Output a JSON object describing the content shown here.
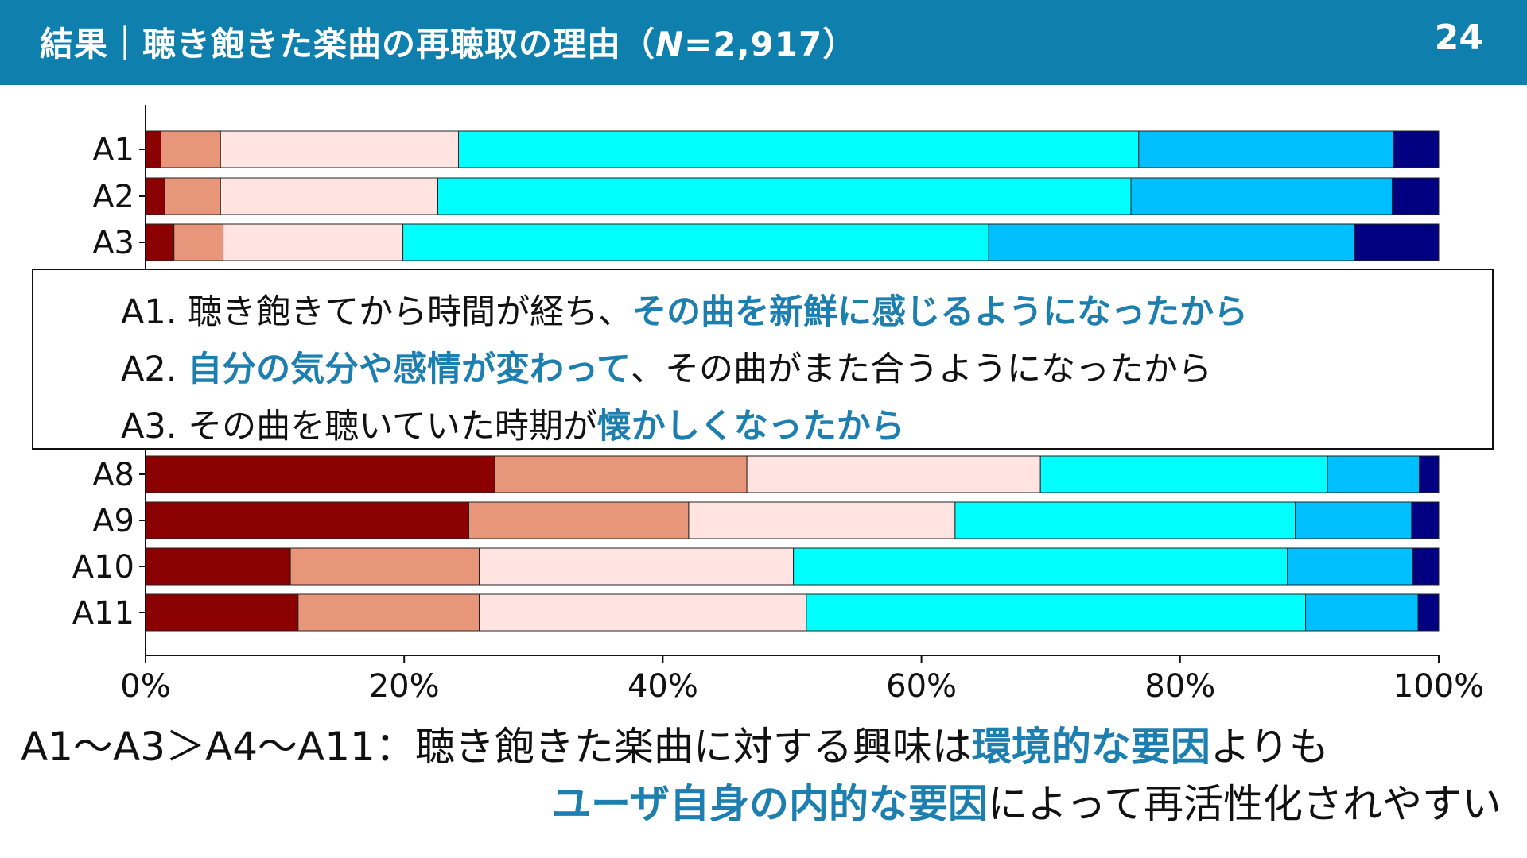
{
  "header": {
    "title_prefix": "結果｜聴き飽きた楽曲の再聴取の理由（",
    "title_n_label": "N",
    "title_suffix": "=2,917）",
    "page_number": "24"
  },
  "legend_box": {
    "rows": [
      {
        "prefix": "A1. 聴き飽きてから時間が経ち、",
        "highlight": "その曲を新鮮に感じるようになったから",
        "suffix": ""
      },
      {
        "prefix": "A2. ",
        "highlight": "自分の気分や感情が変わって",
        "suffix": "、その曲がまた合うようになったから"
      },
      {
        "prefix": "A3. その曲を聴いていた時期が",
        "highlight": "懐かしくなったから",
        "suffix": ""
      }
    ]
  },
  "conclusion": {
    "line1_prefix": "A1～A3＞A4～A11：聴き飽きた楽曲に対する興味は",
    "line1_highlight": "環境的な要因",
    "line1_suffix": "よりも",
    "line2_highlight": "ユーザ自身の内的な要因",
    "line2_suffix": "によって再活性化されやすい"
  },
  "chart_data": {
    "type": "bar",
    "orientation": "horizontal",
    "stacked": true,
    "normalized": true,
    "categories": [
      "A1",
      "A2",
      "A3",
      "A8",
      "A9",
      "A10",
      "A11"
    ],
    "series": [
      {
        "values": [
          1.2,
          1.5,
          2.2,
          27.0,
          25.0,
          11.2,
          11.8
        ],
        "color": "#8b0000"
      },
      {
        "values": [
          4.6,
          4.3,
          3.8,
          19.5,
          17.0,
          14.6,
          14.0
        ],
        "color": "#e8967a"
      },
      {
        "values": [
          18.4,
          16.8,
          13.9,
          22.7,
          20.6,
          24.3,
          25.3
        ],
        "color": "#ffe4e1"
      },
      {
        "values": [
          52.6,
          53.6,
          45.3,
          22.2,
          26.3,
          38.2,
          38.6
        ],
        "color": "#00ffff"
      },
      {
        "values": [
          19.7,
          20.2,
          28.3,
          7.1,
          9.0,
          9.7,
          8.7
        ],
        "color": "#00bfff"
      },
      {
        "values": [
          3.5,
          3.6,
          6.5,
          1.5,
          2.1,
          2.0,
          1.6
        ],
        "color": "#000080"
      }
    ],
    "xlim": [
      0,
      100
    ],
    "xticks": [
      "0%",
      "20%",
      "40%",
      "60%",
      "80%",
      "100%"
    ],
    "grid": false
  }
}
